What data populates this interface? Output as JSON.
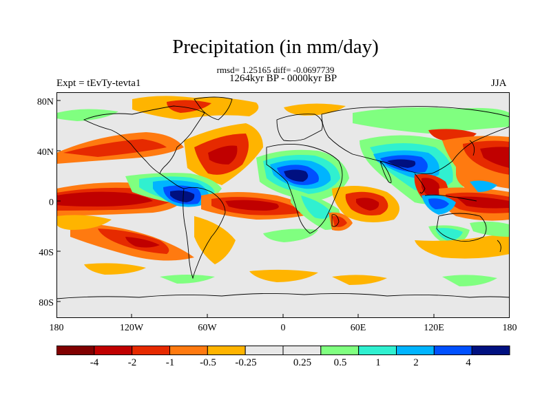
{
  "title": "Precipitation (in mm/day)",
  "stats_line": "rmsd= 1.25165  diff= -0.0697739",
  "period": "1264kyr BP - 0000kyr BP",
  "experiment": "Expt = tEvTy-tevta1",
  "season": "JJA",
  "lat_labels": [
    "80N",
    "40N",
    "0",
    "40S",
    "80S"
  ],
  "lon_labels": [
    "180",
    "120W",
    "60W",
    "0",
    "60E",
    "120E",
    "180"
  ],
  "colorbar": {
    "colors": [
      "#800000",
      "#c00000",
      "#e62a00",
      "#ff7a10",
      "#ffb400",
      "#e8e8e8",
      "#e8e8e8",
      "#80ff80",
      "#30f0d0",
      "#00b4ff",
      "#0050ff",
      "#001080"
    ],
    "labels": [
      "-4",
      "-2",
      "-1",
      "-0.5",
      "-0.25",
      "0.25",
      "0.5",
      "1",
      "2",
      "4"
    ]
  }
}
